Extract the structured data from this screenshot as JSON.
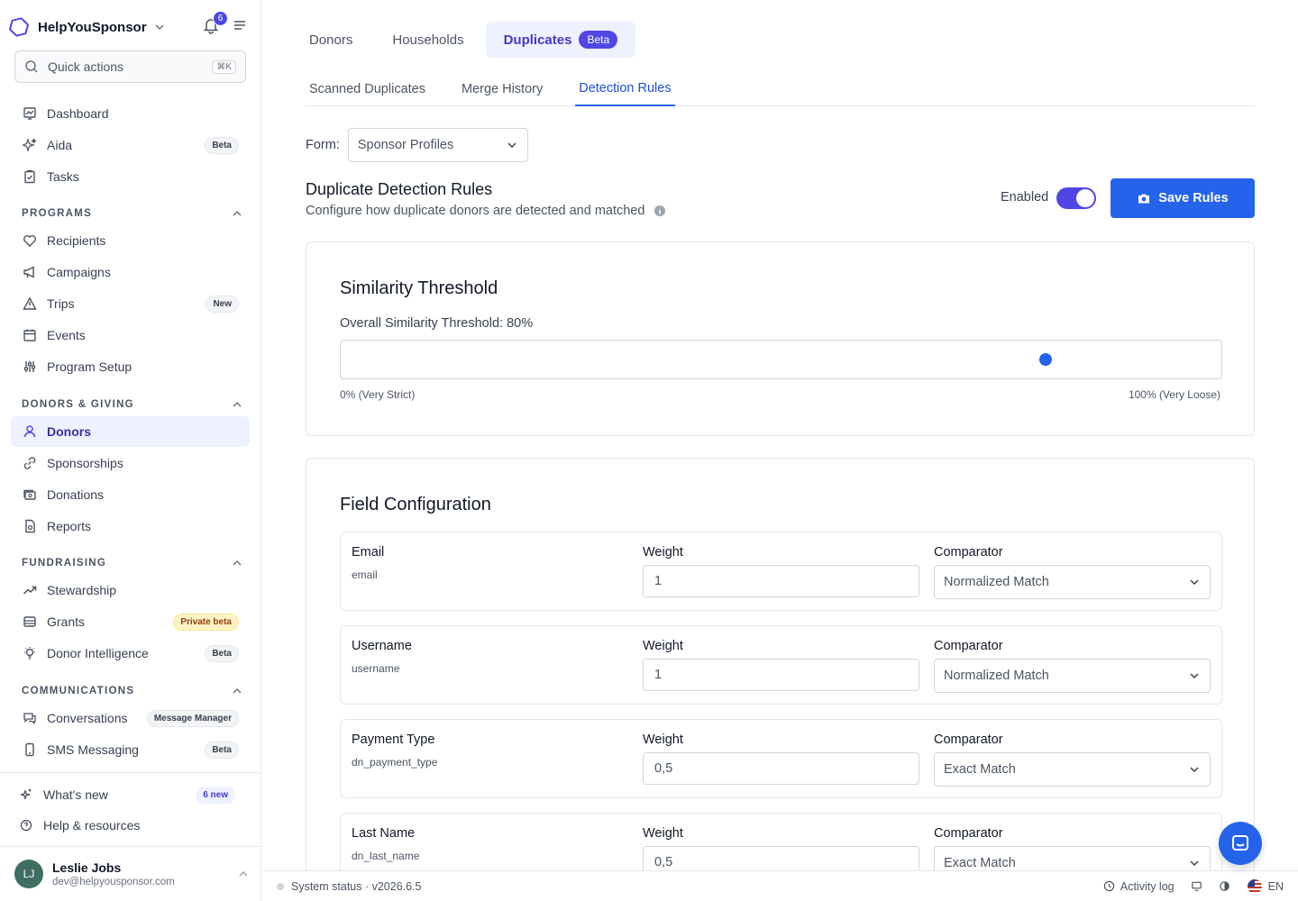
{
  "brand": {
    "name": "HelpYouSponsor",
    "notification_count": "6"
  },
  "search": {
    "label": "Quick actions",
    "shortcut": "⌘K"
  },
  "sidebar": {
    "top_items": [
      {
        "label": "Dashboard",
        "icon": "dashboard-icon"
      },
      {
        "label": "Aida",
        "icon": "sparkles-icon",
        "badge": "Beta"
      },
      {
        "label": "Tasks",
        "icon": "clipboard-icon"
      }
    ],
    "sections": {
      "programs": "PROGRAMS",
      "donors_giving": "DONORS & GIVING",
      "fundraising": "FUNDRAISING",
      "communications": "COMMUNICATIONS"
    },
    "programs": [
      {
        "label": "Recipients",
        "icon": "heart-icon"
      },
      {
        "label": "Campaigns",
        "icon": "megaphone-icon"
      },
      {
        "label": "Trips",
        "icon": "triangle-icon",
        "badge": "New"
      },
      {
        "label": "Events",
        "icon": "calendar-icon"
      },
      {
        "label": "Program Setup",
        "icon": "sliders-icon"
      }
    ],
    "donors_giving": [
      {
        "label": "Donors",
        "icon": "users-icon"
      },
      {
        "label": "Sponsorships",
        "icon": "link-icon"
      },
      {
        "label": "Donations",
        "icon": "cash-icon"
      },
      {
        "label": "Reports",
        "icon": "report-icon"
      }
    ],
    "fundraising": [
      {
        "label": "Stewardship",
        "icon": "trending-up-icon"
      },
      {
        "label": "Grants",
        "icon": "archive-icon",
        "badge": "Private beta"
      },
      {
        "label": "Donor Intelligence",
        "icon": "lightbulb-icon",
        "badge": "Beta"
      }
    ],
    "communications": [
      {
        "label": "Conversations",
        "icon": "chat-icon",
        "badge": "Message Manager"
      },
      {
        "label": "SMS Messaging",
        "icon": "phone-icon",
        "badge": "Beta"
      }
    ],
    "bottom": [
      {
        "label": "What's new",
        "icon": "sparkle-icon",
        "badge": "6 new"
      },
      {
        "label": "Help & resources",
        "icon": "help-icon"
      }
    ],
    "user": {
      "initials": "LJ",
      "name": "Leslie Jobs",
      "email": "dev@helpyousponsor.com"
    }
  },
  "tabs": [
    {
      "label": "Donors"
    },
    {
      "label": "Households"
    },
    {
      "label": "Duplicates",
      "badge": "Beta"
    }
  ],
  "subtabs": [
    {
      "label": "Scanned Duplicates"
    },
    {
      "label": "Merge History"
    },
    {
      "label": "Detection Rules"
    }
  ],
  "form": {
    "label": "Form:",
    "value": "Sponsor Profiles"
  },
  "rules": {
    "title": "Duplicate Detection Rules",
    "description": "Configure how duplicate donors are detected and matched",
    "enabled_label": "Enabled",
    "enabled": true,
    "save_label": "Save Rules"
  },
  "threshold": {
    "title": "Similarity Threshold",
    "label": "Overall Similarity Threshold: 80%",
    "value_percent": 80,
    "min_label": "0% (Very Strict)",
    "max_label": "100% (Very Loose)"
  },
  "fields": {
    "title": "Field Configuration",
    "weight_label": "Weight",
    "comparator_label": "Comparator",
    "rows": [
      {
        "name": "Email",
        "key": "email",
        "weight": "1",
        "comparator": "Normalized Match"
      },
      {
        "name": "Username",
        "key": "username",
        "weight": "1",
        "comparator": "Normalized Match"
      },
      {
        "name": "Payment Type",
        "key": "dn_payment_type",
        "weight": "0,5",
        "comparator": "Exact Match"
      },
      {
        "name": "Last Name",
        "key": "dn_last_name",
        "weight": "0,5",
        "comparator": "Exact Match"
      }
    ]
  },
  "footer": {
    "status": "System status · v2026.6.5",
    "activity": "Activity log",
    "language": "EN"
  },
  "colors": {
    "accent": "#4f46e5",
    "primary": "#2563eb"
  }
}
